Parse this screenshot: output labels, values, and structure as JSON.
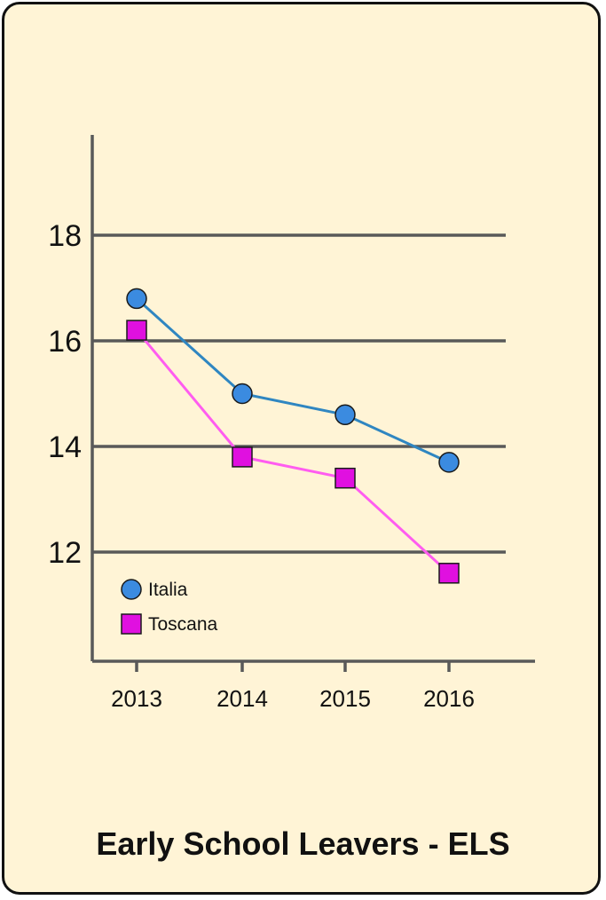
{
  "chart_data": {
    "type": "line",
    "title": "Early School Leavers - ELS",
    "xlabel": "",
    "ylabel": "",
    "categories": [
      "2013",
      "2014",
      "2015",
      "2016"
    ],
    "y_ticks": [
      12,
      14,
      16,
      18
    ],
    "ylim": [
      10.2,
      20
    ],
    "grid": true,
    "legend_position": "bottom-left",
    "series": [
      {
        "name": "Italia",
        "marker": "circle",
        "color": "#3b8be0",
        "line_color": "#2f86c1",
        "values": [
          16.8,
          15.0,
          14.6,
          13.7
        ]
      },
      {
        "name": "Toscana",
        "marker": "square",
        "color": "#e010e0",
        "line_color": "#ff5cf0",
        "values": [
          16.2,
          13.8,
          13.4,
          11.6
        ]
      }
    ]
  }
}
